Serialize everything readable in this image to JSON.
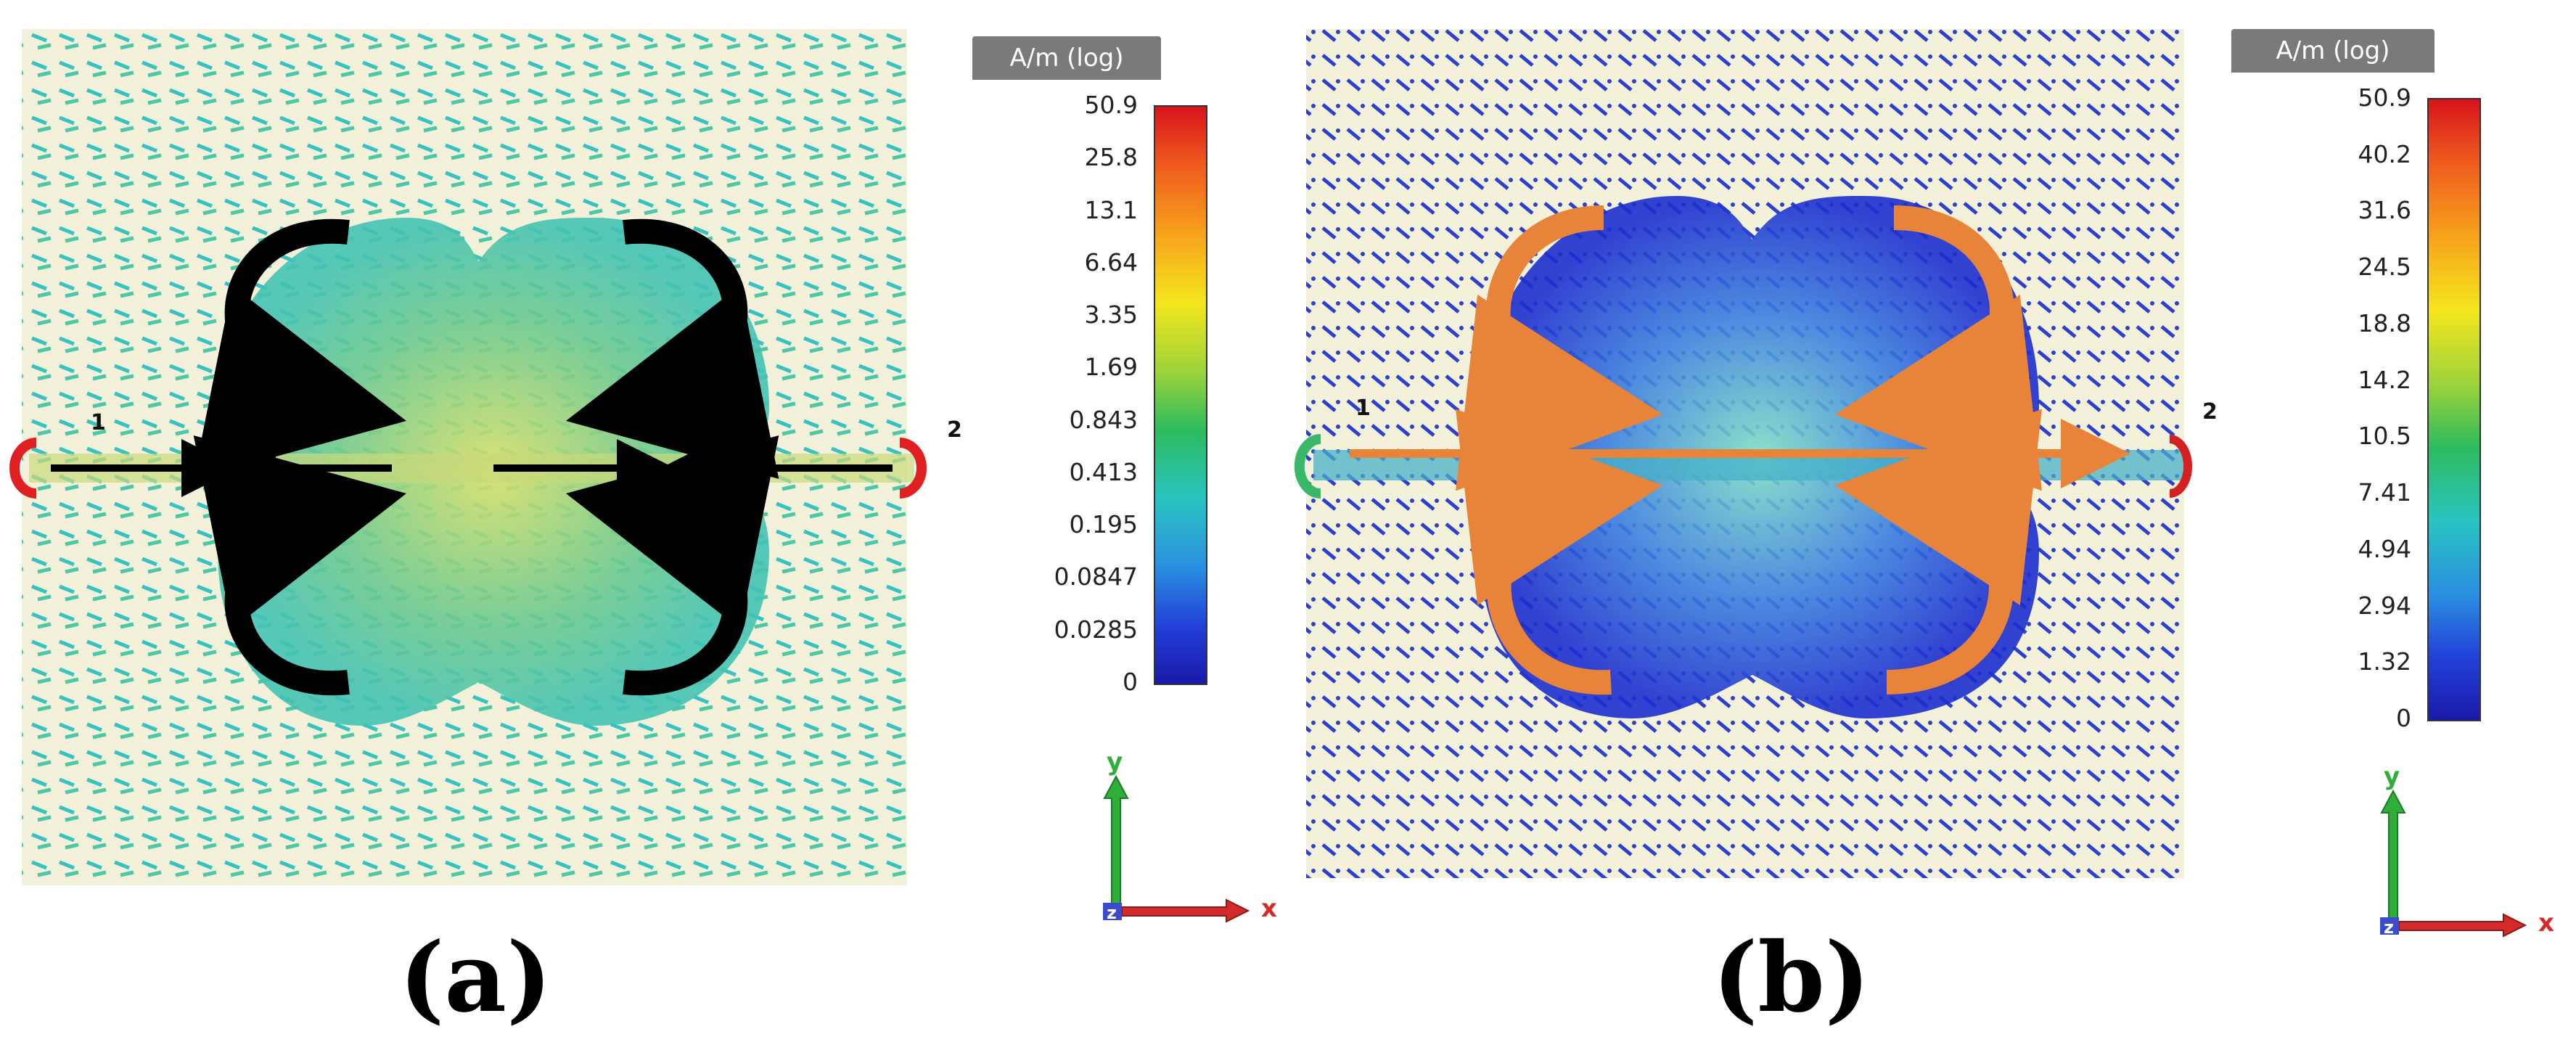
{
  "panel_a": {
    "caption": "(a)",
    "port_1": "1",
    "port_2": "2",
    "colorbar": {
      "title": "A/m (log)",
      "ticks": [
        "50.9",
        "25.8",
        "13.1",
        "6.64",
        "3.35",
        "1.69",
        "0.843",
        "0.413",
        "0.195",
        "0.0847",
        "0.0285",
        "0"
      ]
    },
    "axes": {
      "y": "y",
      "x": "x",
      "z": "z"
    },
    "arrow_color": "#000000",
    "field_color": "#39c6c0"
  },
  "panel_b": {
    "caption": "(b)",
    "port_1": "1",
    "port_2": "2",
    "colorbar": {
      "title": "A/m (log)",
      "ticks": [
        "50.9",
        "40.2",
        "31.6",
        "24.5",
        "18.8",
        "14.2",
        "10.5",
        "7.41",
        "4.94",
        "2.94",
        "1.32",
        "0"
      ]
    },
    "axes": {
      "y": "y",
      "x": "x",
      "z": "z"
    },
    "arrow_color": "#e8843a",
    "field_color": "#2a3fd0"
  }
}
